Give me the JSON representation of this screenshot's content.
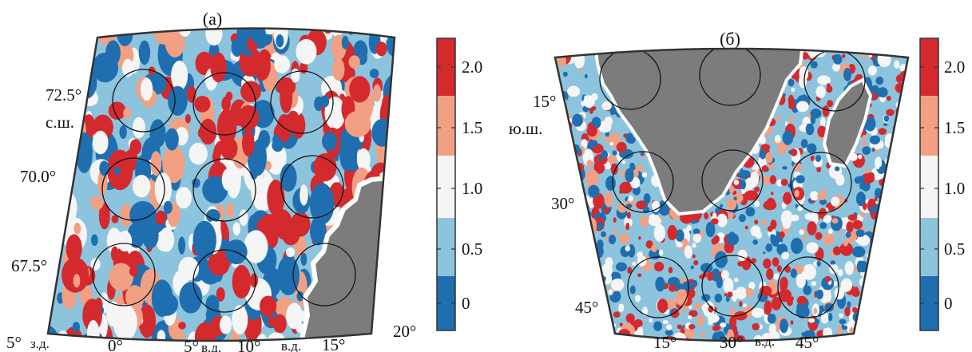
{
  "panels": [
    {
      "id": "a",
      "title": "(а)",
      "lat_labels": [
        "72.5°",
        "70.0°",
        "67.5°"
      ],
      "lat_unit": "с.ш.",
      "lon_labels": [
        "5°",
        "0°",
        "5°",
        "10°",
        "15°",
        "20°"
      ],
      "lon_units": [
        "з.д.",
        "в.д.",
        "в.д."
      ],
      "colorbar_ticks": [
        "2.0",
        "1.5",
        "1.0",
        "0.5",
        "0"
      ]
    },
    {
      "id": "b",
      "title": "(б)",
      "lat_labels": [
        "15°",
        "30°",
        "45°"
      ],
      "lat_unit": "ю.ш.",
      "lon_labels": [
        "15°",
        "30°",
        "45°"
      ],
      "lon_units": [
        "в.д."
      ],
      "colorbar_ticks": [
        "2.0",
        "1.5",
        "1.0",
        "0.5",
        "0"
      ]
    }
  ],
  "colors": {
    "level_0": "#1f6fb0",
    "level_05": "#8cc4de",
    "level_10": "#f5f5f5",
    "level_15": "#f2a083",
    "level_20": "#d42a2e",
    "land": "#7c7c7c",
    "circle": "#111111"
  }
}
